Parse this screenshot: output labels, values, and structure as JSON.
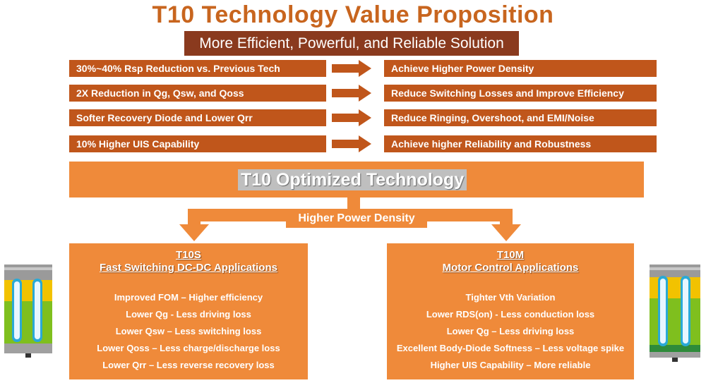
{
  "title": "T10 Technology Value Proposition",
  "subtitle": "More Efficient, Powerful, and Reliable Solution",
  "rows": [
    {
      "left": "30%~40% Rsp Reduction vs. Previous Tech",
      "right": "Achieve Higher Power Density"
    },
    {
      "left": "2X Reduction in Qg, Qsw, and Qoss",
      "right": "Reduce Switching Losses and Improve Efficiency"
    },
    {
      "left": "Softer Recovery Diode and Lower Qrr",
      "right": "Reduce Ringing, Overshoot, and EMI/Noise"
    },
    {
      "left": "10% Higher UIS Capability",
      "right": "Achieve higher Reliability and Robustness"
    }
  ],
  "technology_label": "T10 Optimized Technology",
  "branch_label": "Higher Power Density",
  "panels": [
    {
      "name": "T10S",
      "subtitle": "Fast Switching DC-DC Applications",
      "items": [
        "Improved FOM – Higher efficiency",
        "Lower Qg - Less driving loss",
        "Lower Qsw – Less switching loss",
        "Lower Qoss – Less charge/discharge loss",
        "Lower Qrr – Less reverse recovery loss"
      ]
    },
    {
      "name": "T10M",
      "subtitle": "Motor Control Applications",
      "items": [
        "Tighter Vth Variation",
        "Lower RDS(on) - Less conduction loss",
        "Lower Qg – Less driving loss",
        "Excellent Body-Diode Softness – Less voltage spike",
        "Higher UIS Capability – More reliable"
      ]
    }
  ],
  "colors": {
    "title": "#c8651e",
    "subtitle_bg": "#8a3a1e",
    "row_bg": "#c0561b",
    "panel_bg": "#ef8a3a"
  }
}
